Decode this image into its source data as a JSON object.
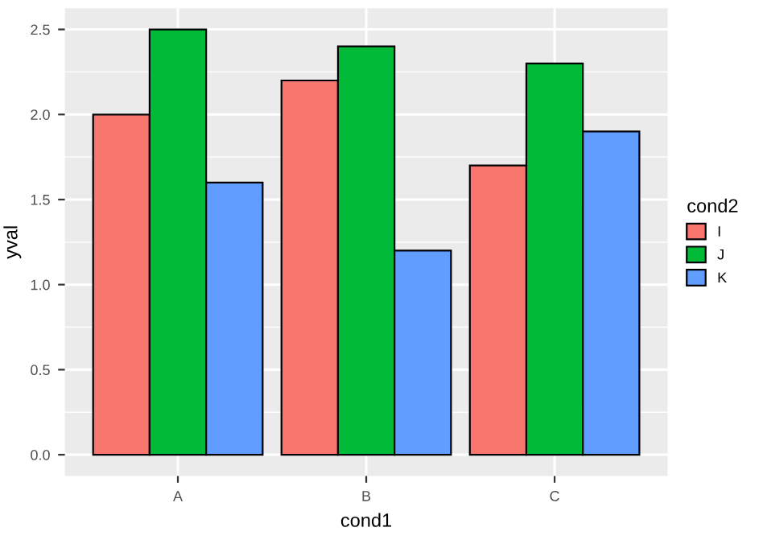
{
  "chart_data": {
    "type": "bar",
    "xlabel": "cond1",
    "ylabel": "yval",
    "legend_title": "cond2",
    "categories": [
      "A",
      "B",
      "C"
    ],
    "series": [
      {
        "name": "I",
        "color": "#f8766d",
        "values": [
          2.0,
          2.2,
          1.7
        ]
      },
      {
        "name": "J",
        "color": "#00ba38",
        "values": [
          2.5,
          2.4,
          2.3
        ]
      },
      {
        "name": "K",
        "color": "#619cff",
        "values": [
          1.6,
          1.2,
          1.9
        ]
      }
    ],
    "ylim": [
      -0.125,
      2.625
    ],
    "yticks": [
      {
        "value": 0,
        "label": "0.0"
      },
      {
        "value": 0.5,
        "label": "0.5"
      },
      {
        "value": 1,
        "label": "1.0"
      },
      {
        "value": 1.5,
        "label": "1.5"
      },
      {
        "value": 2,
        "label": "2.0"
      },
      {
        "value": 2.5,
        "label": "2.5"
      }
    ],
    "grid": true,
    "legend": "right"
  }
}
